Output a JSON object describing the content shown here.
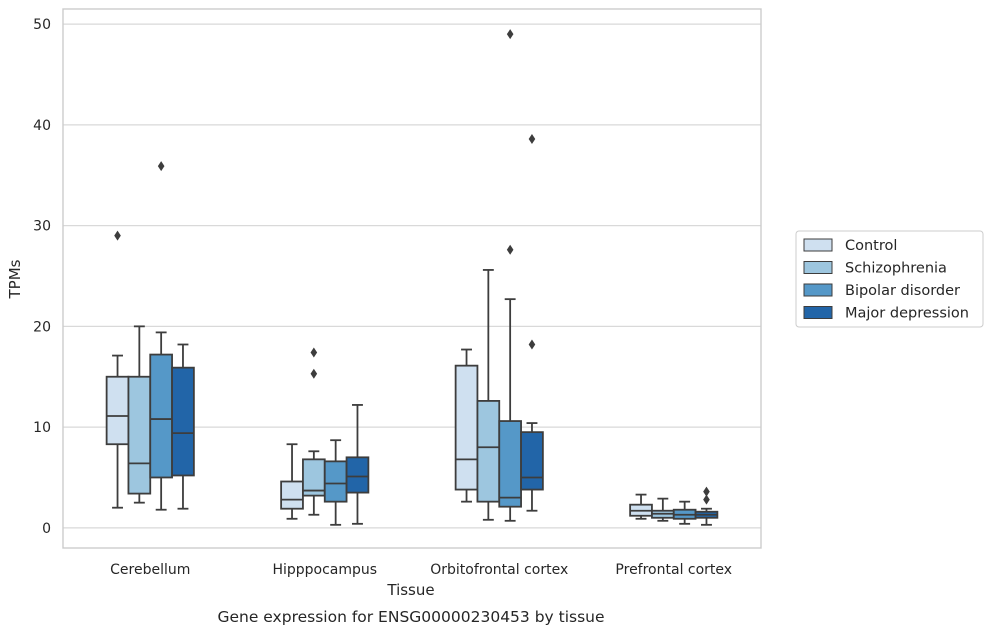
{
  "chart_data": {
    "type": "box",
    "caption": "Gene expression for ENSG00000230453 by tissue",
    "xlabel": "Tissue",
    "ylabel": "TPMs",
    "ylim": [
      -2,
      51.5
    ],
    "yticks": [
      "0",
      "10",
      "20",
      "30",
      "40",
      "50"
    ],
    "grid": true,
    "legend_position": "right",
    "categories": [
      "Cerebellum",
      "Hipppocampus",
      "Orbitofrontal cortex",
      "Prefrontal cortex"
    ],
    "series": [
      {
        "name": "Control",
        "color": "#cfe0f0",
        "boxes": [
          {
            "whisker_low": 2.0,
            "q1": 8.3,
            "median": 11.1,
            "q3": 15.0,
            "whisker_high": 17.1,
            "outliers": [
              29.0
            ]
          },
          {
            "whisker_low": 0.9,
            "q1": 1.9,
            "median": 2.8,
            "q3": 4.6,
            "whisker_high": 8.3,
            "outliers": []
          },
          {
            "whisker_low": 2.6,
            "q1": 3.8,
            "median": 6.8,
            "q3": 16.1,
            "whisker_high": 17.7,
            "outliers": []
          },
          {
            "whisker_low": 0.9,
            "q1": 1.2,
            "median": 1.7,
            "q3": 2.3,
            "whisker_high": 3.3,
            "outliers": []
          }
        ]
      },
      {
        "name": "Schizophrenia",
        "color": "#9dc6df",
        "boxes": [
          {
            "whisker_low": 2.5,
            "q1": 3.4,
            "median": 6.4,
            "q3": 15.0,
            "whisker_high": 20.0,
            "outliers": []
          },
          {
            "whisker_low": 1.3,
            "q1": 3.2,
            "median": 3.7,
            "q3": 6.8,
            "whisker_high": 7.6,
            "outliers": [
              15.3,
              17.4
            ]
          },
          {
            "whisker_low": 0.8,
            "q1": 2.6,
            "median": 8.0,
            "q3": 12.6,
            "whisker_high": 25.6,
            "outliers": []
          },
          {
            "whisker_low": 0.7,
            "q1": 1.0,
            "median": 1.4,
            "q3": 1.7,
            "whisker_high": 2.9,
            "outliers": []
          }
        ]
      },
      {
        "name": "Bipolar disorder",
        "color": "#5598c8",
        "boxes": [
          {
            "whisker_low": 1.8,
            "q1": 5.0,
            "median": 10.8,
            "q3": 17.2,
            "whisker_high": 19.4,
            "outliers": [
              35.9
            ]
          },
          {
            "whisker_low": 0.3,
            "q1": 2.6,
            "median": 4.4,
            "q3": 6.6,
            "whisker_high": 8.7,
            "outliers": []
          },
          {
            "whisker_low": 0.7,
            "q1": 2.1,
            "median": 3.0,
            "q3": 10.6,
            "whisker_high": 22.7,
            "outliers": [
              27.6,
              49.0
            ]
          },
          {
            "whisker_low": 0.4,
            "q1": 0.9,
            "median": 1.3,
            "q3": 1.8,
            "whisker_high": 2.6,
            "outliers": []
          }
        ]
      },
      {
        "name": "Major depression",
        "color": "#2265a8",
        "boxes": [
          {
            "whisker_low": 1.9,
            "q1": 5.2,
            "median": 9.4,
            "q3": 15.9,
            "whisker_high": 18.2,
            "outliers": []
          },
          {
            "whisker_low": 0.4,
            "q1": 3.5,
            "median": 5.1,
            "q3": 7.0,
            "whisker_high": 12.2,
            "outliers": []
          },
          {
            "whisker_low": 1.7,
            "q1": 3.8,
            "median": 5.0,
            "q3": 9.5,
            "whisker_high": 10.4,
            "outliers": [
              18.2,
              38.6
            ]
          },
          {
            "whisker_low": 0.3,
            "q1": 1.0,
            "median": 1.3,
            "q3": 1.6,
            "whisker_high": 1.9,
            "outliers": [
              2.8,
              3.6
            ]
          }
        ]
      }
    ]
  }
}
